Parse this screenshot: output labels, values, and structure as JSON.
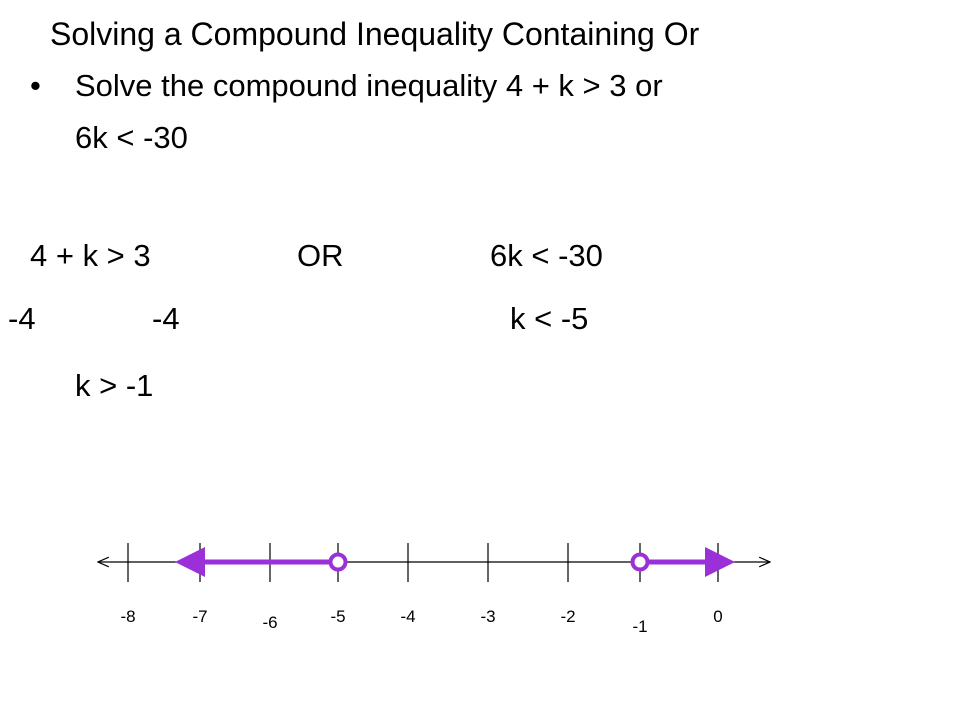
{
  "title": "Solving a Compound Inequality Containing Or",
  "bullet": {
    "line1": "Solve the compound inequality 4 + k > 3 or",
    "line2": "6k < -30"
  },
  "work": {
    "left1": "4 + k > 3",
    "or": "OR",
    "right1": "6k < -30",
    "left2a": "-4",
    "left2b": "-4",
    "right2": "k < -5",
    "left3": "k > -1"
  },
  "number_line": {
    "labels": [
      "-8",
      "-7",
      "-6",
      "-5",
      "-4",
      "-3",
      "-2",
      "-1",
      "0"
    ]
  }
}
